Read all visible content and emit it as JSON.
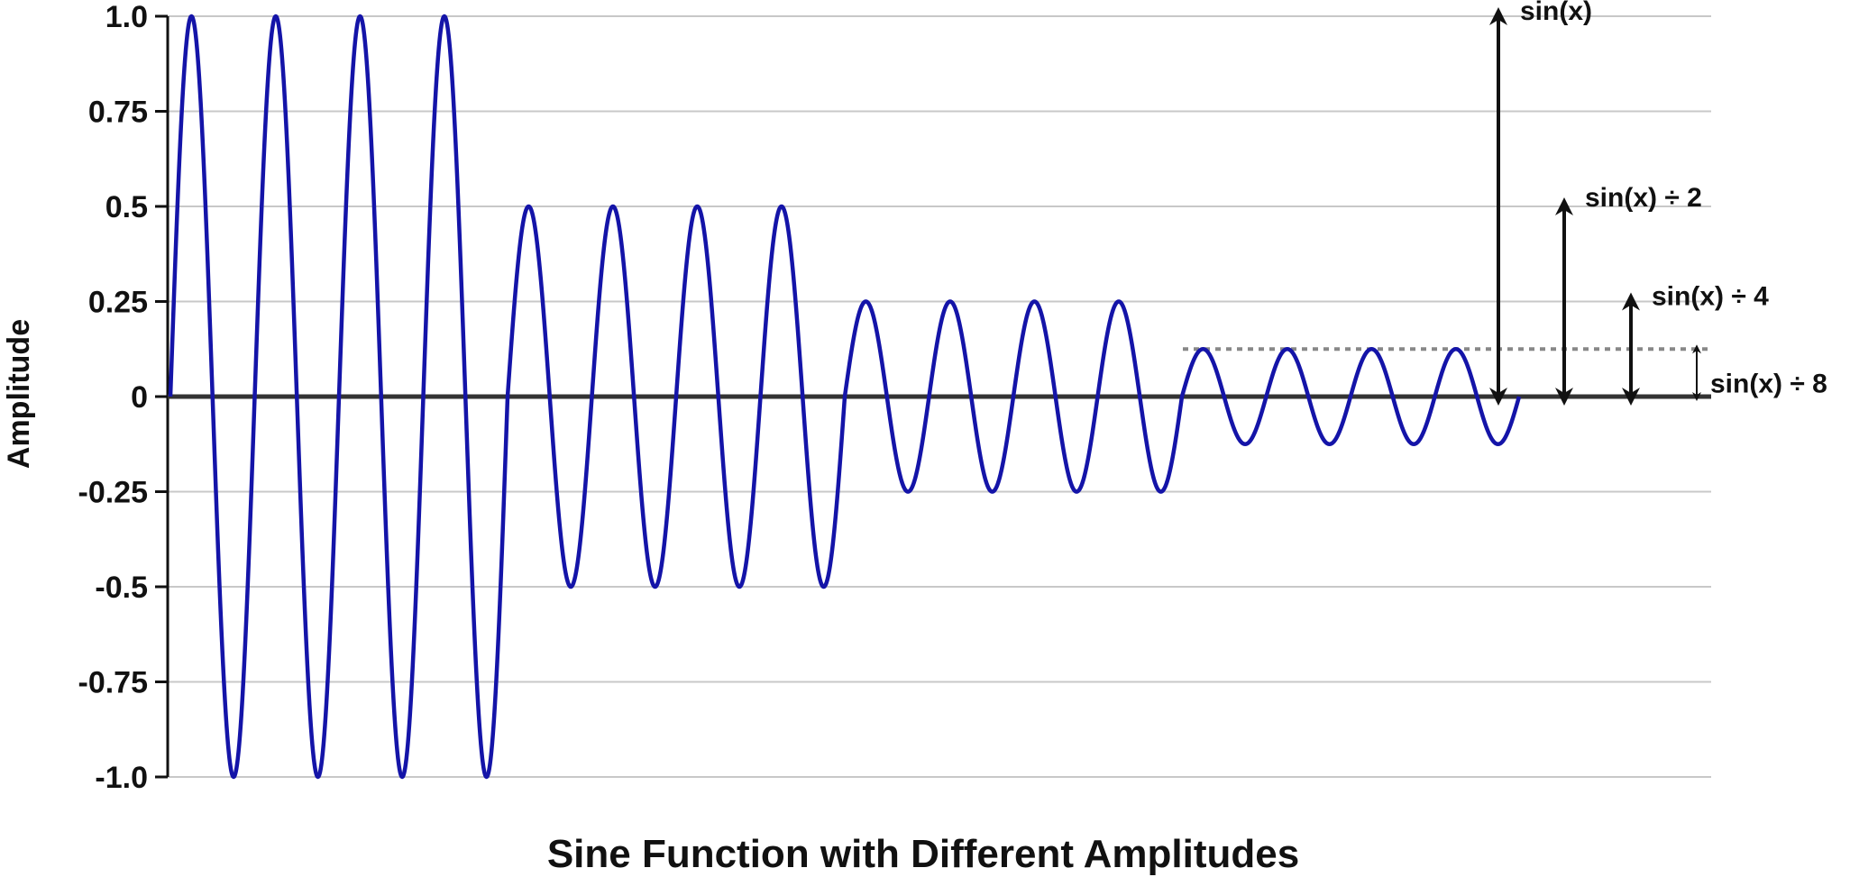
{
  "chart_data": {
    "type": "line",
    "title": "Sine Function with Different Amplitudes",
    "xlabel": "",
    "ylabel": "Amplitude",
    "ylim": [
      -1.0,
      1.0
    ],
    "y_ticks": [
      {
        "value": 1.0,
        "label": "1.0"
      },
      {
        "value": 0.75,
        "label": "0.75"
      },
      {
        "value": 0.5,
        "label": "0.5"
      },
      {
        "value": 0.25,
        "label": "0.25"
      },
      {
        "value": 0,
        "label": "0"
      },
      {
        "value": -0.25,
        "label": "-0.25"
      },
      {
        "value": -0.5,
        "label": "-0.5"
      },
      {
        "value": -0.75,
        "label": "-0.75"
      },
      {
        "value": -1.0,
        "label": "-1.0"
      }
    ],
    "grid": "horizontal",
    "series": [
      {
        "color": "#1414a8",
        "segments": [
          {
            "amplitude": 1.0,
            "cycles": 4
          },
          {
            "amplitude": 0.5,
            "cycles": 4
          },
          {
            "amplitude": 0.25,
            "cycles": 4
          },
          {
            "amplitude": 0.125,
            "cycles": 4
          }
        ]
      }
    ],
    "reference_line": {
      "value": 0.125,
      "style": "dotted",
      "color": "#888888"
    },
    "annotations": [
      {
        "label": "sin(x)",
        "amplitude": 1.0
      },
      {
        "label": "sin(x) ÷ 2",
        "amplitude": 0.5
      },
      {
        "label": "sin(x) ÷ 4",
        "amplitude": 0.25
      },
      {
        "label": "sin(x) ÷ 8",
        "amplitude": 0.125
      }
    ],
    "colors": {
      "line": "#1414a8",
      "axis": "#111111",
      "zero_line": "#333333",
      "grid": "#c8c8c8",
      "reference": "#888888"
    }
  }
}
